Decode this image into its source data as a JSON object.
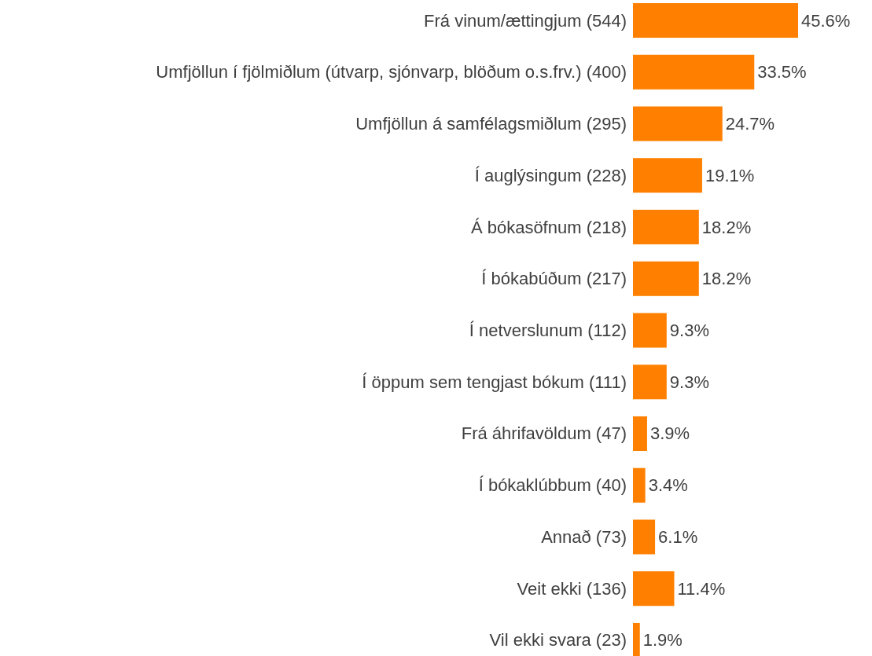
{
  "chart_data": {
    "type": "bar",
    "orientation": "horizontal",
    "categories": [
      "Frá vinum/ættingjum (544)",
      "Umfjöllun í fjölmiðlum (útvarp, sjónvarp, blöðum o.s.frv.) (400)",
      "Umfjöllun á samfélagsmiðlum (295)",
      "Í auglýsingum (228)",
      "Á bókasöfnum (218)",
      "Í bókabúðum (217)",
      "Í netverslunum (112)",
      "Í öppum sem tengjast bókum (111)",
      "Frá áhrifavöldum (47)",
      "Í bókaklúbbum (40)",
      "Annað (73)",
      "Veit ekki (136)",
      "Vil ekki svara (23)"
    ],
    "values": [
      45.6,
      33.5,
      24.7,
      19.1,
      18.2,
      18.2,
      9.3,
      9.3,
      3.9,
      3.4,
      6.1,
      11.4,
      1.9
    ],
    "color": "#ff8000",
    "data_labels": true,
    "value_labels": [
      "45.6%",
      "33.5%",
      "24.7%",
      "19.1%",
      "18.2%",
      "18.2%",
      "9.3%",
      "9.3%",
      "3.9%",
      "3.4%",
      "6.1%",
      "11.4%",
      "1.9%"
    ]
  }
}
